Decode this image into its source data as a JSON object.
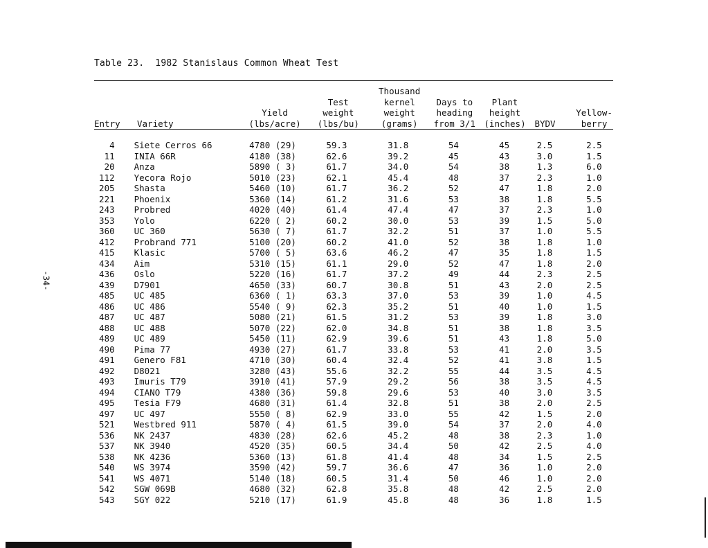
{
  "page": {
    "caption": "Table 23.  1982 Stanislaus Common Wheat Test",
    "page_number": "-34-"
  },
  "header": {
    "entry": "Entry",
    "variety": "Variety",
    "yield": "Yield\n(lbs/acre)",
    "test_weight": "Test\nweight\n(lbs/bu)",
    "kernel_weight": "Thousand\nkernel\nweight\n(grams)",
    "days_heading": "Days to\nheading\nfrom 3/1",
    "plant_height": "Plant\nheight\n(inches)",
    "bydv": "BYDV",
    "yellowberry": "Yellow-\nberry"
  },
  "rows": [
    {
      "entry": "4",
      "variety": "Siete Cerros 66",
      "yield": "4780 (29)",
      "test_weight": "59.3",
      "kernel_weight": "31.8",
      "days": "54",
      "height": "45",
      "bydv": "2.5",
      "yellowberry": "2.5"
    },
    {
      "entry": "11",
      "variety": "INIA 66R",
      "yield": "4180 (38)",
      "test_weight": "62.6",
      "kernel_weight": "39.2",
      "days": "45",
      "height": "43",
      "bydv": "3.0",
      "yellowberry": "1.5"
    },
    {
      "entry": "20",
      "variety": "Anza",
      "yield": "5890 ( 3)",
      "test_weight": "61.7",
      "kernel_weight": "34.0",
      "days": "54",
      "height": "38",
      "bydv": "1.3",
      "yellowberry": "6.0"
    },
    {
      "entry": "112",
      "variety": "Yecora Rojo",
      "yield": "5010 (23)",
      "test_weight": "62.1",
      "kernel_weight": "45.4",
      "days": "48",
      "height": "37",
      "bydv": "2.3",
      "yellowberry": "1.0"
    },
    {
      "entry": "205",
      "variety": "Shasta",
      "yield": "5460 (10)",
      "test_weight": "61.7",
      "kernel_weight": "36.2",
      "days": "52",
      "height": "47",
      "bydv": "1.8",
      "yellowberry": "2.0"
    },
    {
      "entry": "221",
      "variety": "Phoenix",
      "yield": "5360 (14)",
      "test_weight": "61.2",
      "kernel_weight": "31.6",
      "days": "53",
      "height": "38",
      "bydv": "1.8",
      "yellowberry": "5.5"
    },
    {
      "entry": "243",
      "variety": "Probred",
      "yield": "4020 (40)",
      "test_weight": "61.4",
      "kernel_weight": "47.4",
      "days": "47",
      "height": "37",
      "bydv": "2.3",
      "yellowberry": "1.0"
    },
    {
      "entry": "353",
      "variety": "Yolo",
      "yield": "6220 ( 2)",
      "test_weight": "60.2",
      "kernel_weight": "30.0",
      "days": "53",
      "height": "39",
      "bydv": "1.5",
      "yellowberry": "5.0"
    },
    {
      "entry": "360",
      "variety": "UC 360",
      "yield": "5630 ( 7)",
      "test_weight": "61.7",
      "kernel_weight": "32.2",
      "days": "51",
      "height": "37",
      "bydv": "1.0",
      "yellowberry": "5.5"
    },
    {
      "entry": "412",
      "variety": "Probrand 771",
      "yield": "5100 (20)",
      "test_weight": "60.2",
      "kernel_weight": "41.0",
      "days": "52",
      "height": "38",
      "bydv": "1.8",
      "yellowberry": "1.0"
    },
    {
      "entry": "415",
      "variety": "Klasic",
      "yield": "5700 ( 5)",
      "test_weight": "63.6",
      "kernel_weight": "46.2",
      "days": "47",
      "height": "35",
      "bydv": "1.8",
      "yellowberry": "1.5"
    },
    {
      "entry": "434",
      "variety": "Aim",
      "yield": "5310 (15)",
      "test_weight": "61.1",
      "kernel_weight": "29.0",
      "days": "52",
      "height": "47",
      "bydv": "1.8",
      "yellowberry": "2.0"
    },
    {
      "entry": "436",
      "variety": "Oslo",
      "yield": "5220 (16)",
      "test_weight": "61.7",
      "kernel_weight": "37.2",
      "days": "49",
      "height": "44",
      "bydv": "2.3",
      "yellowberry": "2.5"
    },
    {
      "entry": "439",
      "variety": "D7901",
      "yield": "4650 (33)",
      "test_weight": "60.7",
      "kernel_weight": "30.8",
      "days": "51",
      "height": "43",
      "bydv": "2.0",
      "yellowberry": "2.5"
    },
    {
      "entry": "485",
      "variety": "UC 485",
      "yield": "6360 ( 1)",
      "test_weight": "63.3",
      "kernel_weight": "37.0",
      "days": "53",
      "height": "39",
      "bydv": "1.0",
      "yellowberry": "4.5"
    },
    {
      "entry": "486",
      "variety": "UC 486",
      "yield": "5540 ( 9)",
      "test_weight": "62.3",
      "kernel_weight": "35.2",
      "days": "51",
      "height": "40",
      "bydv": "1.0",
      "yellowberry": "1.5"
    },
    {
      "entry": "487",
      "variety": "UC 487",
      "yield": "5080 (21)",
      "test_weight": "61.5",
      "kernel_weight": "31.2",
      "days": "53",
      "height": "39",
      "bydv": "1.8",
      "yellowberry": "3.0"
    },
    {
      "entry": "488",
      "variety": "UC 488",
      "yield": "5070 (22)",
      "test_weight": "62.0",
      "kernel_weight": "34.8",
      "days": "51",
      "height": "38",
      "bydv": "1.8",
      "yellowberry": "3.5"
    },
    {
      "entry": "489",
      "variety": "UC 489",
      "yield": "5450 (11)",
      "test_weight": "62.9",
      "kernel_weight": "39.6",
      "days": "51",
      "height": "43",
      "bydv": "1.8",
      "yellowberry": "5.0"
    },
    {
      "entry": "490",
      "variety": "Pima 77",
      "yield": "4930 (27)",
      "test_weight": "61.7",
      "kernel_weight": "33.8",
      "days": "53",
      "height": "41",
      "bydv": "2.0",
      "yellowberry": "3.5"
    },
    {
      "entry": "491",
      "variety": "Genero F81",
      "yield": "4710 (30)",
      "test_weight": "60.4",
      "kernel_weight": "32.4",
      "days": "52",
      "height": "41",
      "bydv": "3.8",
      "yellowberry": "1.5"
    },
    {
      "entry": "492",
      "variety": "D8021",
      "yield": "3280 (43)",
      "test_weight": "55.6",
      "kernel_weight": "32.2",
      "days": "55",
      "height": "44",
      "bydv": "3.5",
      "yellowberry": "4.5"
    },
    {
      "entry": "493",
      "variety": "Imuris T79",
      "yield": "3910 (41)",
      "test_weight": "57.9",
      "kernel_weight": "29.2",
      "days": "56",
      "height": "38",
      "bydv": "3.5",
      "yellowberry": "4.5"
    },
    {
      "entry": "494",
      "variety": "CIANO T79",
      "yield": "4380 (36)",
      "test_weight": "59.8",
      "kernel_weight": "29.6",
      "days": "53",
      "height": "40",
      "bydv": "3.0",
      "yellowberry": "3.5"
    },
    {
      "entry": "495",
      "variety": "Tesia F79",
      "yield": "4680 (31)",
      "test_weight": "61.4",
      "kernel_weight": "32.8",
      "days": "51",
      "height": "38",
      "bydv": "2.0",
      "yellowberry": "2.5"
    },
    {
      "entry": "497",
      "variety": "UC 497",
      "yield": "5550 ( 8)",
      "test_weight": "62.9",
      "kernel_weight": "33.0",
      "days": "55",
      "height": "42",
      "bydv": "1.5",
      "yellowberry": "2.0"
    },
    {
      "entry": "521",
      "variety": "Westbred 911",
      "yield": "5870 ( 4)",
      "test_weight": "61.5",
      "kernel_weight": "39.0",
      "days": "54",
      "height": "37",
      "bydv": "2.0",
      "yellowberry": "4.0"
    },
    {
      "entry": "536",
      "variety": "NK 2437",
      "yield": "4830 (28)",
      "test_weight": "62.6",
      "kernel_weight": "45.2",
      "days": "48",
      "height": "38",
      "bydv": "2.3",
      "yellowberry": "1.0"
    },
    {
      "entry": "537",
      "variety": "NK 3940",
      "yield": "4520 (35)",
      "test_weight": "60.5",
      "kernel_weight": "34.4",
      "days": "50",
      "height": "42",
      "bydv": "2.5",
      "yellowberry": "4.0"
    },
    {
      "entry": "538",
      "variety": "NK 4236",
      "yield": "5360 (13)",
      "test_weight": "61.8",
      "kernel_weight": "41.4",
      "days": "48",
      "height": "34",
      "bydv": "1.5",
      "yellowberry": "2.5"
    },
    {
      "entry": "540",
      "variety": "WS 3974",
      "yield": "3590 (42)",
      "test_weight": "59.7",
      "kernel_weight": "36.6",
      "days": "47",
      "height": "36",
      "bydv": "1.0",
      "yellowberry": "2.0"
    },
    {
      "entry": "541",
      "variety": "WS 4071",
      "yield": "5140 (18)",
      "test_weight": "60.5",
      "kernel_weight": "31.4",
      "days": "50",
      "height": "46",
      "bydv": "1.0",
      "yellowberry": "2.0"
    },
    {
      "entry": "542",
      "variety": "SGW 069B",
      "yield": "4680 (32)",
      "test_weight": "62.8",
      "kernel_weight": "35.8",
      "days": "48",
      "height": "42",
      "bydv": "2.5",
      "yellowberry": "2.0"
    },
    {
      "entry": "543",
      "variety": "SGY 022",
      "yield": "5210 (17)",
      "test_weight": "61.9",
      "kernel_weight": "45.8",
      "days": "48",
      "height": "36",
      "bydv": "1.8",
      "yellowberry": "1.5"
    }
  ]
}
